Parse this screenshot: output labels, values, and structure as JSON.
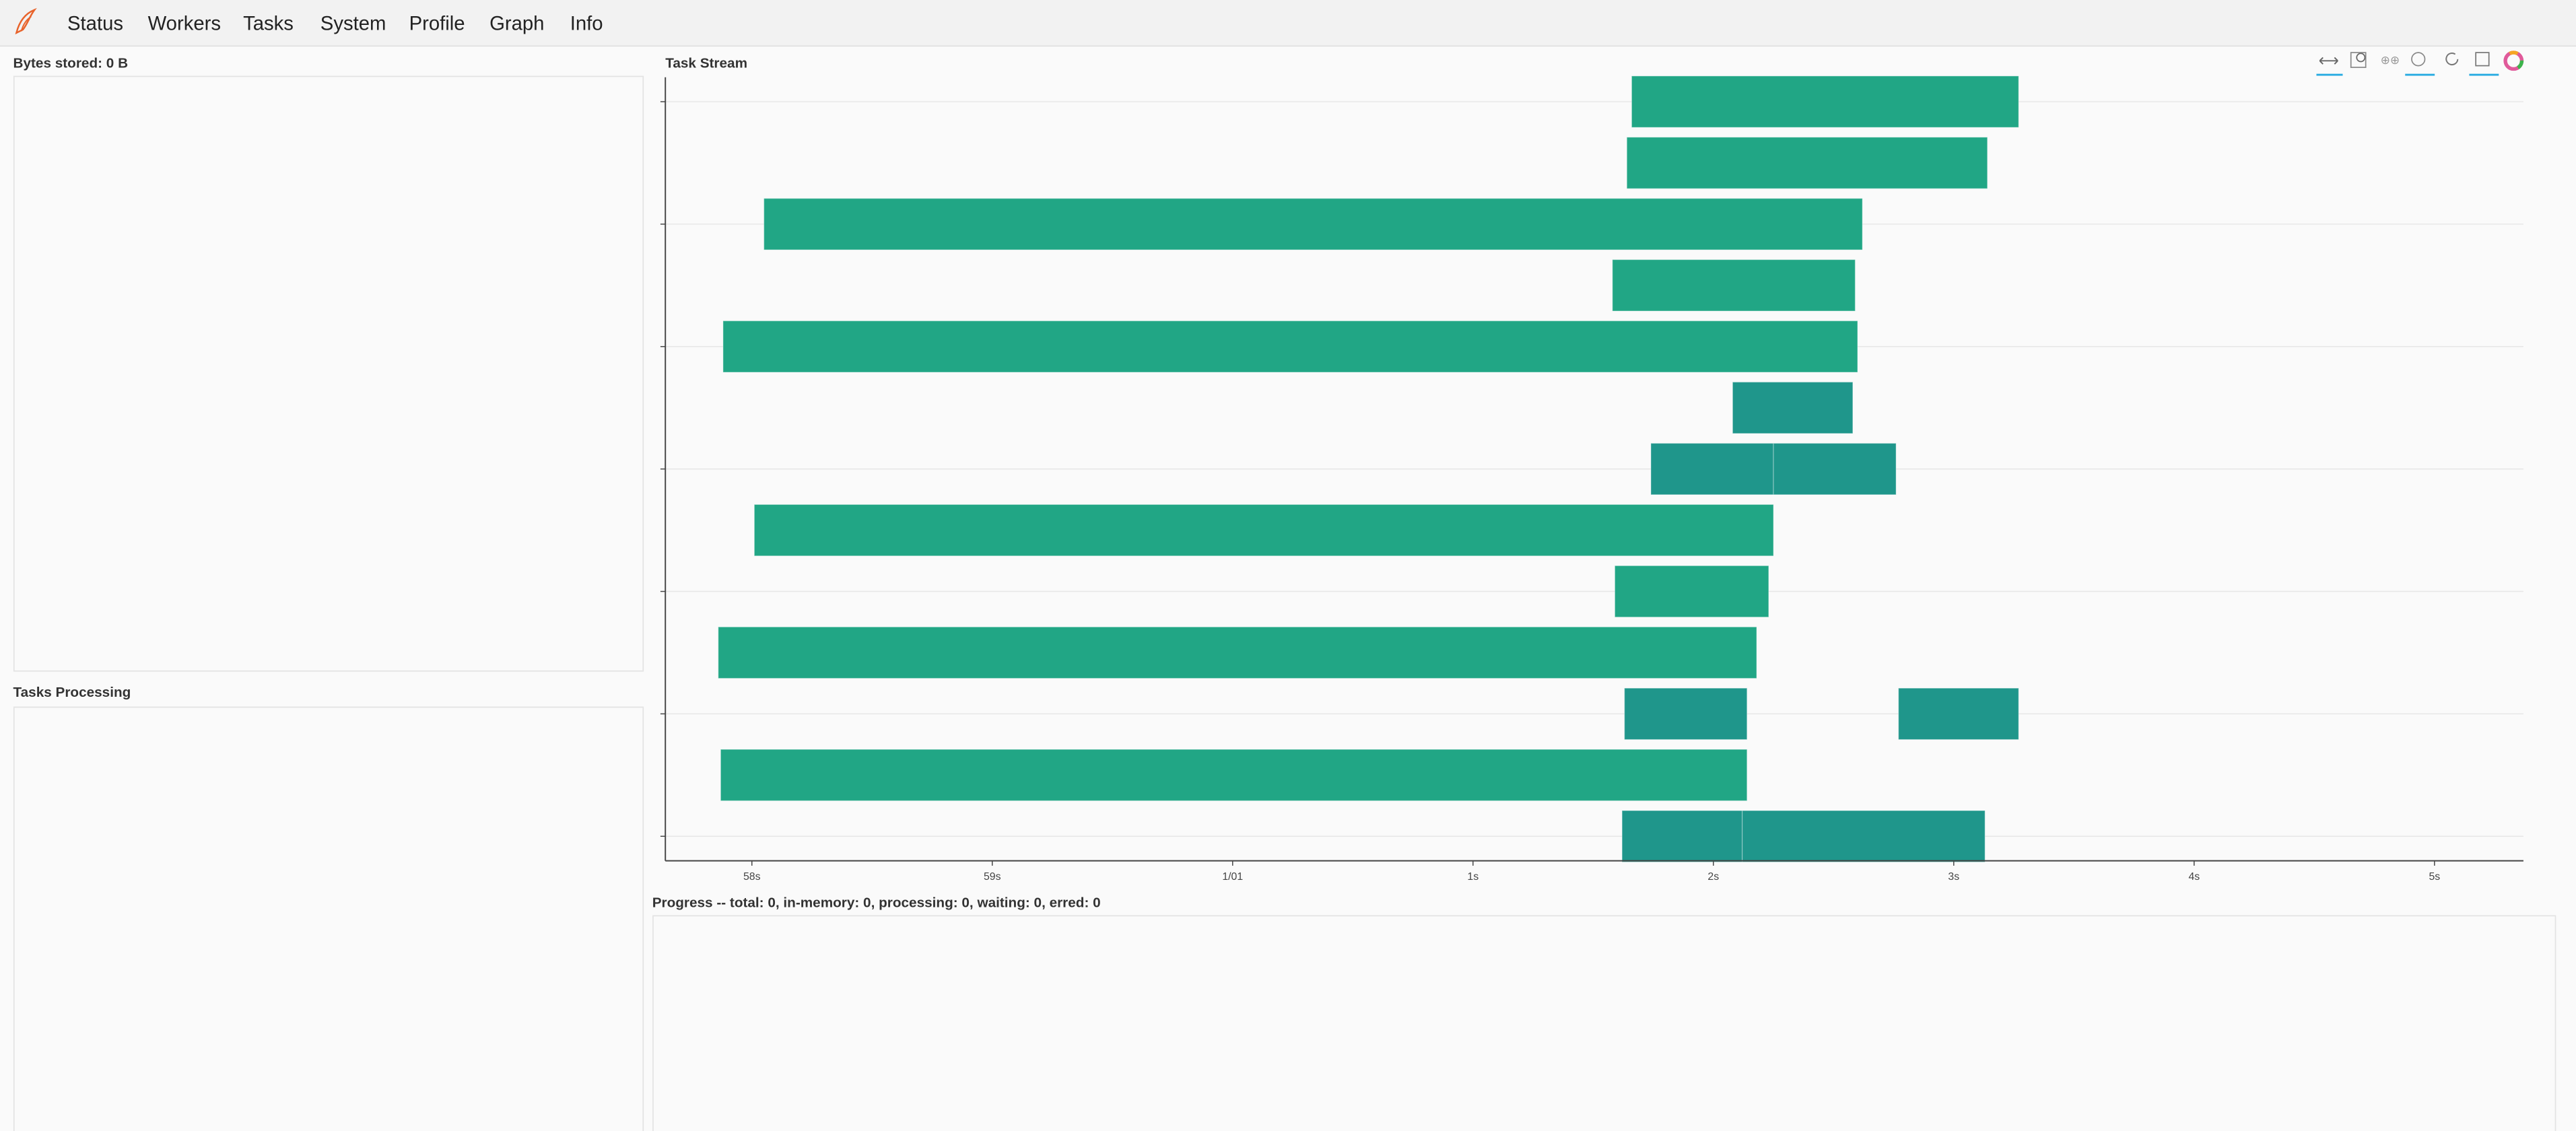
{
  "nav": [
    "Status",
    "Workers",
    "Tasks",
    "System",
    "Profile",
    "Graph",
    "Info"
  ],
  "panels": {
    "bytes_stored": "Bytes stored: 0 B",
    "tasks_processing": "Tasks Processing",
    "progress": "Progress -- total: 0, in-memory: 0, processing: 0, waiting: 0, erred: 0"
  },
  "chart_data": {
    "type": "task-stream",
    "title": "Task Stream",
    "xlim": [
      -2.36,
      5.37
    ],
    "xticks": [
      {
        "value": -2,
        "label": "58s"
      },
      {
        "value": -1,
        "label": "59s"
      },
      {
        "value": 0,
        "label": "1/01"
      },
      {
        "value": 1,
        "label": "1s"
      },
      {
        "value": 2,
        "label": "2s"
      },
      {
        "value": 3,
        "label": "3s"
      },
      {
        "value": 4,
        "label": "4s"
      },
      {
        "value": 5,
        "label": "5s"
      }
    ],
    "ylim": [
      -0.4,
      12.4
    ],
    "yticks": [
      0,
      2,
      4,
      6,
      8,
      10,
      12
    ],
    "grid": true,
    "bars": [
      {
        "row": 0,
        "start": 1.66,
        "end": 3.27,
        "color": "#21a685"
      },
      {
        "row": 1,
        "start": 1.64,
        "end": 3.14,
        "color": "#21a685"
      },
      {
        "row": 2,
        "start": -1.95,
        "end": 2.62,
        "color": "#21a685"
      },
      {
        "row": 3,
        "start": 1.58,
        "end": 2.59,
        "color": "#21a685"
      },
      {
        "row": 4,
        "start": -2.12,
        "end": 2.6,
        "color": "#21a685"
      },
      {
        "row": 5,
        "start": 2.08,
        "end": 2.58,
        "color": "#1f968b"
      },
      {
        "row": 6,
        "start": 1.74,
        "end": 2.25,
        "color": "#1f968b"
      },
      {
        "row": 6,
        "start": 2.25,
        "end": 2.76,
        "color": "#1f968b"
      },
      {
        "row": 7,
        "start": -1.99,
        "end": 2.25,
        "color": "#21a685"
      },
      {
        "row": 8,
        "start": 1.59,
        "end": 2.23,
        "color": "#21a685"
      },
      {
        "row": 9,
        "start": -2.14,
        "end": 2.18,
        "color": "#21a685"
      },
      {
        "row": 10,
        "start": 1.63,
        "end": 2.14,
        "color": "#1f968b"
      },
      {
        "row": 10,
        "start": 2.77,
        "end": 3.27,
        "color": "#1f968b"
      },
      {
        "row": 11,
        "start": -2.13,
        "end": 2.14,
        "color": "#21a685"
      },
      {
        "row": 12,
        "start": 1.62,
        "end": 2.12,
        "color": "#1f968b"
      },
      {
        "row": 12,
        "start": 2.12,
        "end": 3.13,
        "color": "#1f968b"
      }
    ]
  }
}
